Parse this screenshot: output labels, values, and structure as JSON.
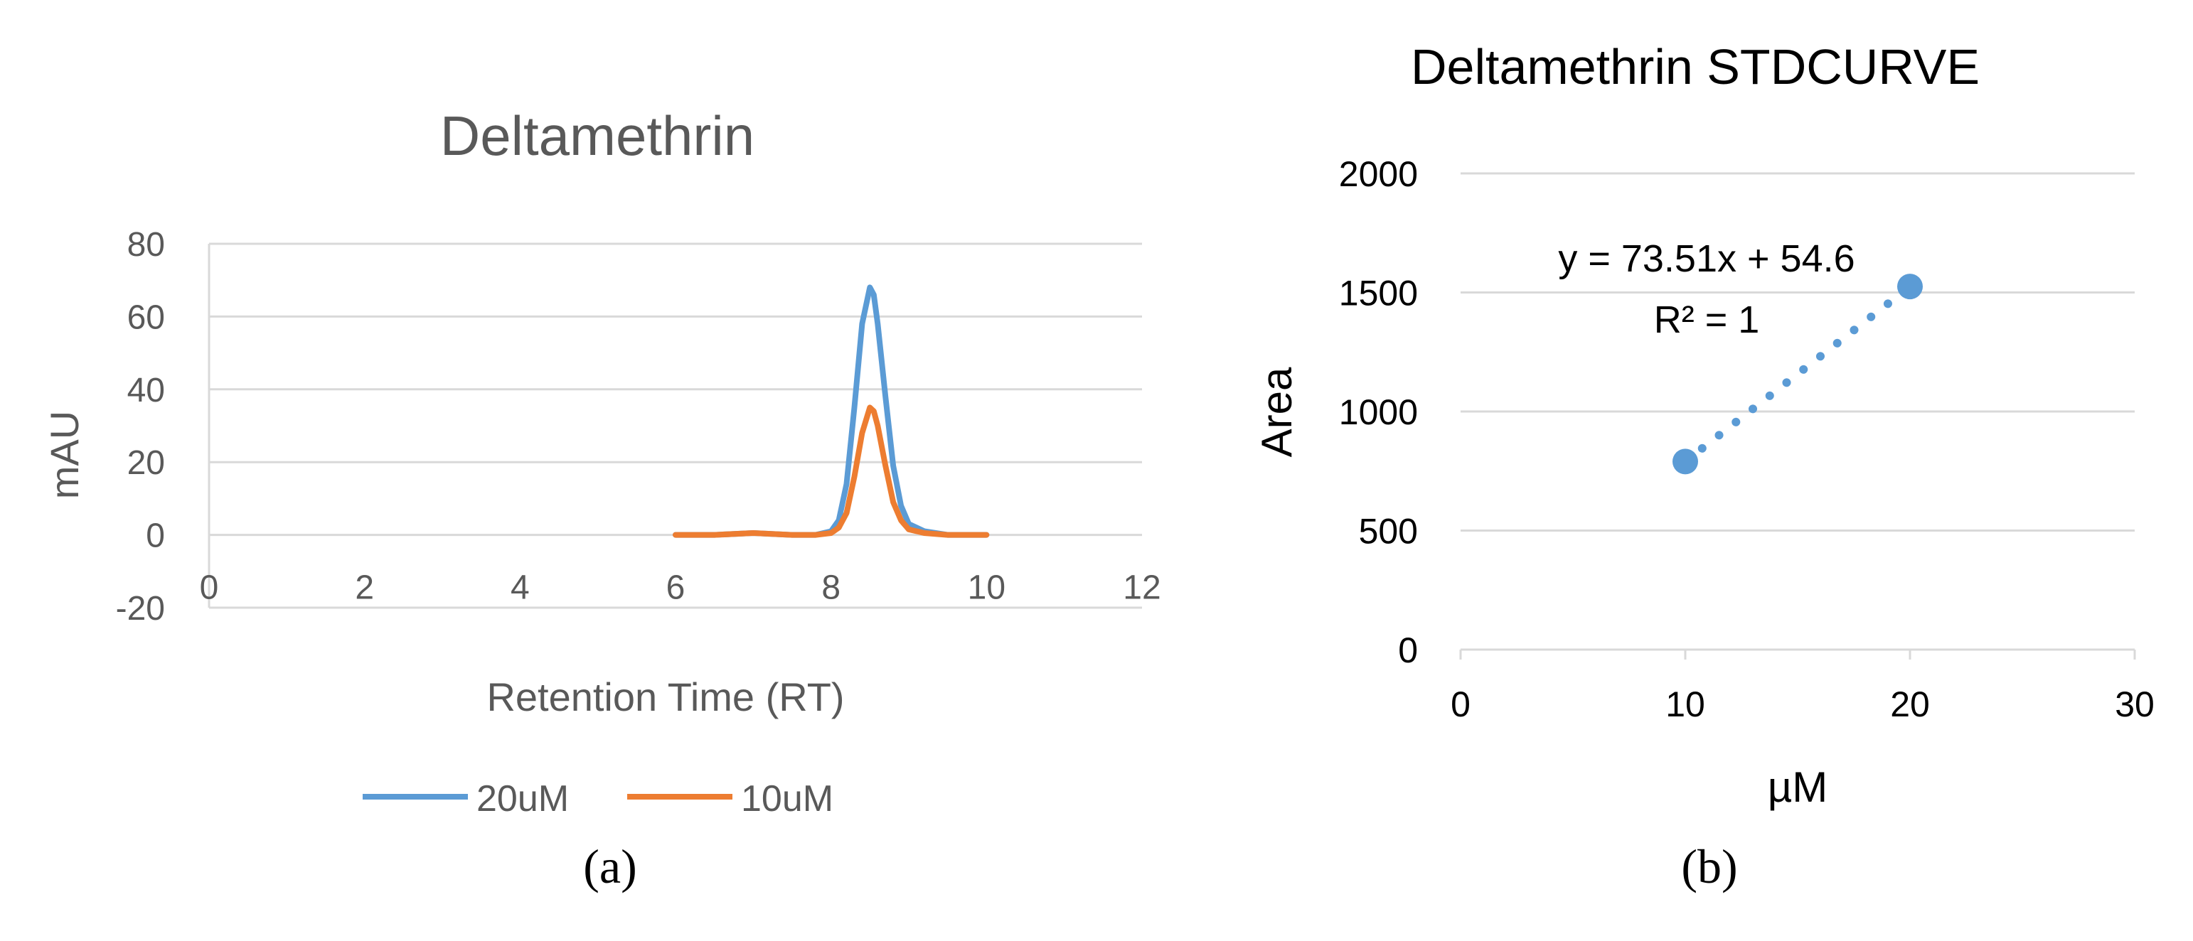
{
  "chart_data": [
    {
      "panel_label": "(a)",
      "type": "line",
      "title": "Deltamethrin",
      "xlabel": "Retention Time (RT)",
      "ylabel": "mAU",
      "xlim": [
        0,
        12
      ],
      "ylim": [
        -20,
        80
      ],
      "xticks": [
        "0",
        "2",
        "4",
        "6",
        "8",
        "10",
        "12"
      ],
      "yticks": [
        "-20",
        "0",
        "20",
        "40",
        "60",
        "80"
      ],
      "grid": "horizontal",
      "legend_position": "bottom",
      "series": [
        {
          "name": "20uM",
          "color": "#5b9bd5",
          "x": [
            6,
            6.5,
            7,
            7.5,
            7.8,
            8.0,
            8.1,
            8.2,
            8.3,
            8.4,
            8.5,
            8.55,
            8.6,
            8.7,
            8.8,
            8.9,
            9.0,
            9.2,
            9.5,
            10
          ],
          "y": [
            0,
            0,
            0.5,
            0,
            0,
            1,
            4,
            14,
            35,
            58,
            68,
            66,
            58,
            38,
            19,
            8,
            3,
            1,
            0,
            0
          ]
        },
        {
          "name": "10uM",
          "color": "#ed7d31",
          "x": [
            6,
            6.5,
            7,
            7.5,
            7.8,
            8.0,
            8.1,
            8.2,
            8.3,
            8.4,
            8.5,
            8.55,
            8.6,
            8.7,
            8.8,
            8.9,
            9.0,
            9.2,
            9.5,
            10
          ],
          "y": [
            0,
            0,
            0.5,
            0,
            0,
            0.5,
            2,
            6,
            16,
            28,
            35,
            34,
            30,
            19,
            9,
            4,
            1.5,
            0.5,
            0,
            0
          ]
        }
      ]
    },
    {
      "panel_label": "(b)",
      "type": "scatter",
      "title": "Deltamethrin STDCURVE",
      "xlabel": "µM",
      "ylabel": "Area",
      "xlim": [
        0,
        30
      ],
      "ylim": [
        0,
        2000
      ],
      "xticks": [
        "0",
        "10",
        "20",
        "30"
      ],
      "yticks": [
        "0",
        "500",
        "1000",
        "1500",
        "2000"
      ],
      "grid": "horizontal",
      "color": "#5b9bd5",
      "points": [
        {
          "x": 10,
          "y": 790
        },
        {
          "x": 20,
          "y": 1525
        }
      ],
      "trendline": {
        "type": "linear",
        "equation": "y = 73.51x + 54.6",
        "r_squared": "R² = 1",
        "x_range": [
          10,
          20
        ]
      }
    }
  ]
}
